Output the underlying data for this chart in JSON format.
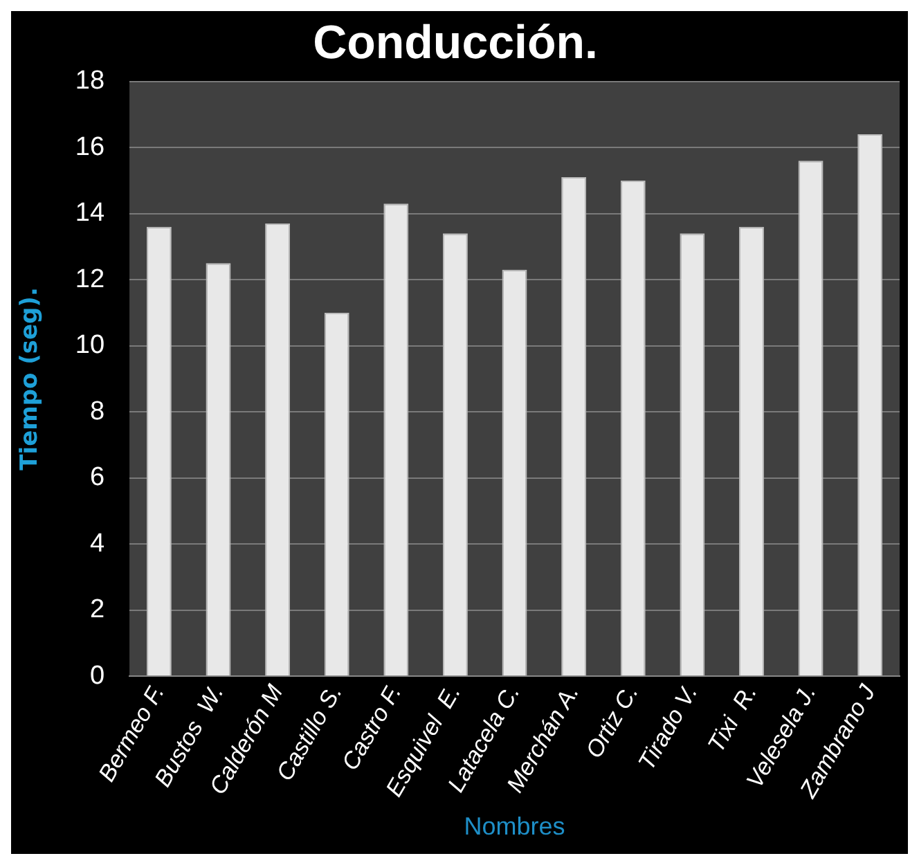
{
  "chart_data": {
    "type": "bar",
    "title": "Conducción.",
    "xlabel": "Nombres",
    "ylabel": "Tiempo (seg).",
    "categories": [
      "Bermeo F.",
      "Bustos  W.",
      "Calderón M",
      "Castillo S.",
      "Castro F.",
      "Esquivel  E.",
      "Latacela C.",
      "Merchán A.",
      "Ortiz C.",
      "Tirado V.",
      "Tixi  R.",
      "Velesela J.",
      "Zambrano J"
    ],
    "values": [
      13.6,
      12.5,
      13.7,
      11.0,
      14.3,
      13.4,
      12.3,
      15.1,
      15.0,
      13.4,
      13.6,
      15.6,
      16.4
    ],
    "color": "#e8e8e8",
    "ylim": [
      0,
      18
    ],
    "yticks": [
      0,
      2,
      4,
      6,
      8,
      10,
      12,
      14,
      16,
      18
    ],
    "grid": "y",
    "legend": false
  }
}
